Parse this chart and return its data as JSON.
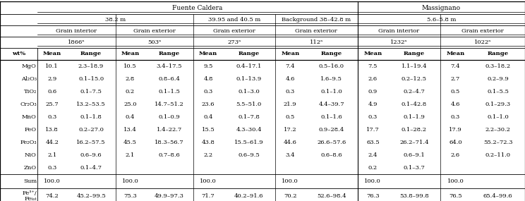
{
  "fuente_caldera_label": "Fuente Caldera",
  "massignano_label": "Massignano",
  "row1_labels": [
    "38.2 m",
    "39.95 and 40.5 m",
    "Background 38–42.8 m",
    "5.6–5.8 m"
  ],
  "row2_labels": [
    "Grain interior",
    "Grain exterior",
    "Grain exterior",
    "Grain exterior",
    "Grain interior",
    "Grain exterior"
  ],
  "row3_labels": [
    "1866ᵃ",
    "503ᵃ",
    "273ᵃ",
    "112ᵃ",
    "1232ᵃ",
    "1022ᵃ"
  ],
  "col_header": [
    "wt%",
    "Mean",
    "Range",
    "Mean",
    "Range",
    "Mean",
    "Range",
    "Mean",
    "Range",
    "Mean",
    "Range",
    "Mean",
    "Range"
  ],
  "data_rows": [
    [
      "MgO",
      "10.1",
      "2.3–18.9",
      "10.5",
      "3.4–17.5",
      "9.5",
      "0.4–17.1",
      "7.4",
      "0.5–16.0",
      "7.5",
      "1.1–19.4",
      "7.4",
      "0.3–18.2"
    ],
    [
      "Al₂O₃",
      "2.9",
      "0.1–15.0",
      "2.8",
      "0.8–6.4",
      "4.8",
      "0.1–13.9",
      "4.6",
      "1.6–9.5",
      "2.6",
      "0.2–12.5",
      "2.7",
      "0.2–9.9"
    ],
    [
      "TiO₂",
      "0.6",
      "0.1–7.5",
      "0.2",
      "0.1–1.5",
      "0.3",
      "0.1–3.0",
      "0.3",
      "0.1–1.0",
      "0.9",
      "0.2–4.7",
      "0.5",
      "0.1–5.5"
    ],
    [
      "Cr₂O₃",
      "25.7",
      "13.2–53.5",
      "25.0",
      "14.7–51.2",
      "23.6",
      "5.5–51.0",
      "21.9",
      "4.4–39.7",
      "4.9",
      "0.1–42.8",
      "4.6",
      "0.1–29.3"
    ],
    [
      "MnO",
      "0.3",
      "0.1–1.8",
      "0.4",
      "0.1–0.9",
      "0.4",
      "0.1–7.8",
      "0.5",
      "0.1–1.6",
      "0.3",
      "0.1–1.9",
      "0.3",
      "0.1–1.0"
    ],
    [
      "FeO",
      "13.8",
      "0.2–27.0",
      "13.4",
      "1.4–22.7",
      "15.5",
      "4.3–30.4",
      "17.2",
      "0.9–28.4",
      "17.7",
      "0.1–28.2",
      "17.9",
      "2.2–30.2"
    ],
    [
      "Fe₂O₃",
      "44.2",
      "16.2–57.5",
      "45.5",
      "18.3–56.7",
      "43.8",
      "15.5–61.9",
      "44.6",
      "26.6–57.6",
      "63.5",
      "26.2–71.4",
      "64.0",
      "55.2–72.3"
    ],
    [
      "NiO",
      "2.1",
      "0.6–9.6",
      "2.1",
      "0.7–8.6",
      "2.2",
      "0.6–9.5",
      "3.4",
      "0.6–8.6",
      "2.4",
      "0.6–9.1",
      "2.6",
      "0.2–11.0"
    ],
    [
      "ZnO",
      "0.3",
      "0.1–4.7",
      "",
      "",
      "",
      "",
      "",
      "",
      "0.2",
      "0.1–3.7",
      "",
      ""
    ]
  ],
  "sum_row": [
    "Sum",
    "100.0",
    "",
    "100.0",
    "",
    "100.0",
    "",
    "100.0",
    "",
    "100.0",
    "",
    "100.0",
    ""
  ],
  "fe_row": [
    "Fe³⁺/Feₜₒₜ",
    "74.2",
    "45.2–99.5",
    "75.3",
    "49.9–97.3",
    "71.7",
    "40.2–91.6",
    "70.2",
    "52.6–98.4",
    "76.3",
    "53.8–99.8",
    "76.5",
    "65.4–99.6"
  ],
  "fe_label_line1": "Fe³⁺/",
  "fe_label_line2": "Feₜₒₜ"
}
